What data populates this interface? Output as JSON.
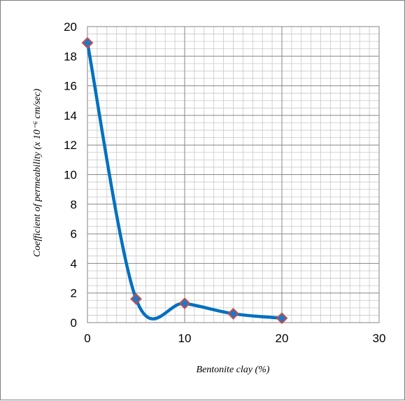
{
  "chart_data": {
    "type": "scatter",
    "title": "",
    "xlabel": "Bentonite clay (%)",
    "ylabel": "Coefficient of permeability (x 10⁻⁶ cm/sec)",
    "xlim": [
      0,
      30
    ],
    "ylim": [
      0,
      20
    ],
    "x_ticks": [
      "0",
      "10",
      "20",
      "30"
    ],
    "y_ticks": [
      "0",
      "2",
      "4",
      "6",
      "8",
      "10",
      "12",
      "14",
      "16",
      "18",
      "20"
    ],
    "grid": true,
    "legend": "none",
    "series": [
      {
        "x": [
          0,
          5,
          10,
          15,
          20
        ],
        "y": [
          18.9,
          1.6,
          1.3,
          0.6,
          0.3
        ],
        "smooth": true
      }
    ],
    "colors": {
      "line": "#0070c0",
      "marker_fill": "#1f77c8",
      "marker_edge": "#c0504d",
      "major_grid": "#868686",
      "minor_grid": "#c8c8c8"
    }
  }
}
